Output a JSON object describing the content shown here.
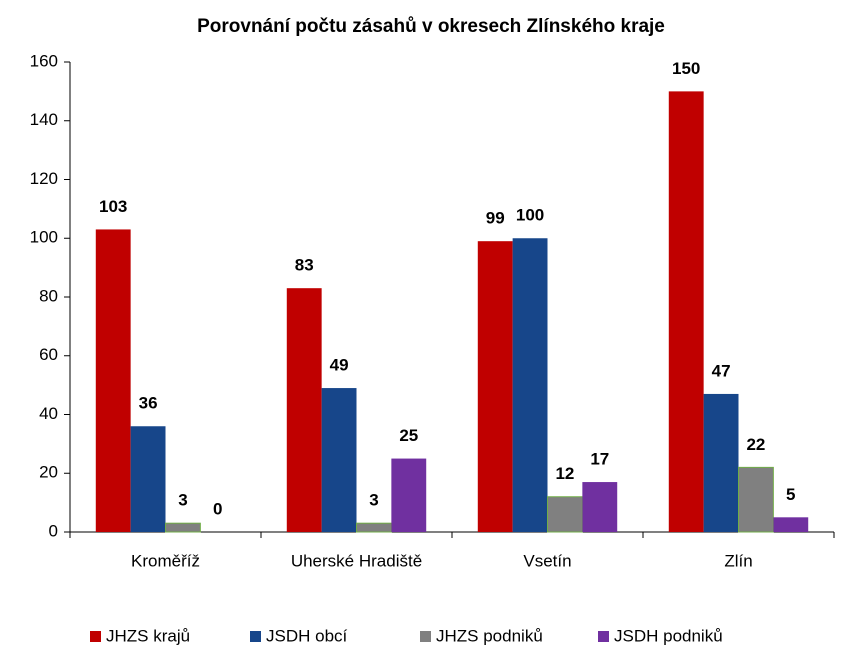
{
  "chart_data": {
    "type": "bar",
    "title": "Porovnání počtu zásahů v okresech Zlínského kraje",
    "categories": [
      "Kroměříž",
      "Uherské Hradiště",
      "Vsetín",
      "Zlín"
    ],
    "series": [
      {
        "name": "JHZS krajů",
        "color": "#c00000",
        "values": [
          103,
          83,
          99,
          150
        ]
      },
      {
        "name": "JSDH obcí",
        "color": "#17468a",
        "values": [
          36,
          49,
          100,
          47
        ]
      },
      {
        "name": "JHZS podniků",
        "color": "#808080",
        "values": [
          3,
          3,
          12,
          22
        ]
      },
      {
        "name": "JSDH podniků",
        "color": "#7030a0",
        "values": [
          0,
          25,
          17,
          5
        ]
      }
    ],
    "ylim": [
      0,
      160
    ],
    "yticks": [
      0,
      20,
      40,
      60,
      80,
      100,
      120,
      140,
      160
    ],
    "legend": "bottom"
  }
}
